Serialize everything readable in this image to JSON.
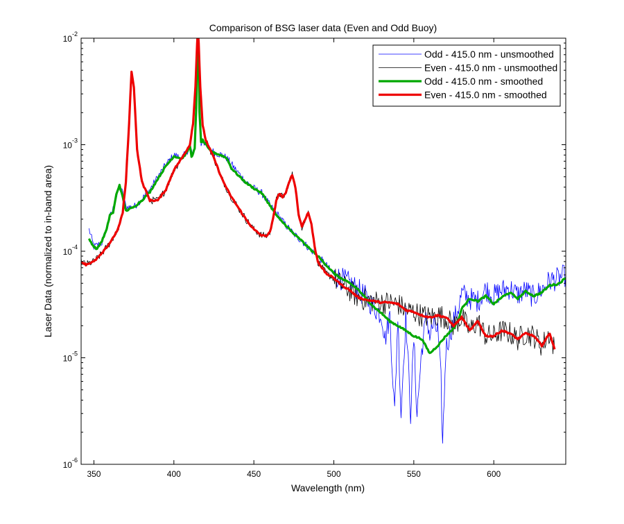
{
  "chart_data": {
    "type": "line",
    "title": "Comparison of BSG laser data (Even and Odd Buoy)",
    "xlabel": "Wavelength (nm)",
    "ylabel": "Laser Data (normalized to in-band area)",
    "xlim": [
      342,
      645
    ],
    "ylim": [
      1e-06,
      0.01
    ],
    "yscale": "log",
    "grid": false,
    "legend_position": "top-right",
    "x_ticks": [
      350,
      400,
      450,
      500,
      550,
      600
    ],
    "x_tick_labels": [
      "350",
      "400",
      "450",
      "500",
      "550",
      "600"
    ],
    "y_ticks": [
      1e-06,
      1e-05,
      0.0001,
      0.001,
      0.01
    ],
    "y_tick_labels": [
      {
        "base": "10",
        "exp": "-6"
      },
      {
        "base": "10",
        "exp": "-5"
      },
      {
        "base": "10",
        "exp": "-4"
      },
      {
        "base": "10",
        "exp": "-3"
      },
      {
        "base": "10",
        "exp": "-2"
      }
    ],
    "series": [
      {
        "name": "Odd - 415.0 nm - unsmoothed",
        "color": "#0000ff",
        "line_width": 0.8,
        "noisy": true,
        "x": [
          347,
          350,
          355,
          360,
          362,
          365,
          366,
          368,
          370,
          375,
          380,
          385,
          390,
          395,
          400,
          405,
          408,
          410,
          412,
          413,
          414,
          414.5,
          415,
          415.5,
          416,
          417,
          418,
          420,
          425,
          430,
          433,
          440,
          445,
          450,
          455,
          458,
          460,
          465,
          470,
          475,
          480,
          485,
          490,
          495,
          500,
          505,
          510,
          515,
          520,
          525,
          530,
          532,
          535,
          538,
          540,
          542,
          545,
          548,
          550,
          552,
          555,
          558,
          560,
          562,
          565,
          567,
          568,
          570,
          573,
          575,
          578,
          580,
          585,
          590,
          595,
          600,
          605,
          610,
          615,
          620,
          625,
          630,
          635,
          640,
          645
        ],
        "y": [
          0.00016,
          0.00011,
          0.00012,
          0.00021,
          0.00025,
          0.00036,
          0.00041,
          0.00035,
          0.00026,
          0.00026,
          0.00031,
          0.00038,
          0.0005,
          0.00065,
          0.0008,
          0.00075,
          0.00085,
          0.00098,
          0.00078,
          0.0009,
          0.002,
          0.006,
          0.011,
          0.006,
          0.002,
          0.001,
          0.0011,
          0.001,
          0.00085,
          0.0008,
          0.00075,
          0.00055,
          0.00045,
          0.00039,
          0.00035,
          0.0003,
          0.00027,
          0.00022,
          0.000175,
          0.000145,
          0.000125,
          0.000105,
          9e-05,
          7.5e-05,
          6e-05,
          5.5e-05,
          5e-05,
          4.4e-05,
          3.7e-05,
          3e-05,
          2.5e-05,
          1.5e-05,
          2.5e-05,
          3e-06,
          2.5e-05,
          3e-06,
          2.5e-05,
          3e-06,
          1.5e-05,
          3e-06,
          1.2e-05,
          2.5e-05,
          1.6e-05,
          2e-05,
          1.8e-05,
          6e-06,
          1.5e-06,
          1.2e-05,
          1.8e-05,
          2.2e-05,
          3e-05,
          4e-05,
          3.6e-05,
          3.4e-05,
          4.4e-05,
          3.8e-05,
          4.3e-05,
          4.5e-05,
          3.9e-05,
          4.3e-05,
          3.7e-05,
          4.4e-05,
          5.3e-05,
          5.5e-05,
          6e-05
        ]
      },
      {
        "name": "Even - 415.0 nm - unsmoothed",
        "color": "#000000",
        "line_width": 0.8,
        "noisy": true,
        "x": [
          342,
          345,
          350,
          355,
          360,
          365,
          368,
          370,
          372,
          373.5,
          375,
          377,
          380,
          385,
          390,
          395,
          400,
          405,
          410,
          412,
          413.5,
          414.5,
          415,
          415.5,
          416.5,
          418,
          420,
          425,
          430,
          435,
          440,
          445,
          450,
          455,
          458,
          460,
          462,
          464,
          466,
          468,
          470,
          472,
          474,
          476,
          478,
          480,
          482,
          484,
          486,
          488,
          490,
          495,
          500,
          505,
          510,
          515,
          520,
          525,
          530,
          535,
          540,
          545,
          550,
          555,
          560,
          565,
          570,
          575,
          580,
          585,
          590,
          595,
          600,
          605,
          610,
          615,
          620,
          625,
          630,
          635,
          638
        ],
        "y": [
          8e-05,
          7.5e-05,
          8e-05,
          9.5e-05,
          0.00012,
          0.00016,
          0.00023,
          0.00045,
          0.0016,
          0.0048,
          0.0035,
          0.0009,
          0.00045,
          0.0003,
          0.0003,
          0.00038,
          0.00058,
          0.00075,
          0.001,
          0.0016,
          0.0035,
          0.009,
          0.012,
          0.009,
          0.0035,
          0.0015,
          0.0011,
          0.00075,
          0.00048,
          0.00034,
          0.00026,
          0.0002,
          0.00016,
          0.00014,
          0.00014,
          0.00015,
          0.0002,
          0.0003,
          0.00035,
          0.00032,
          0.00035,
          0.00045,
          0.00052,
          0.0004,
          0.00022,
          0.00017,
          0.0002,
          0.00023,
          0.00018,
          0.00011,
          8e-05,
          6.2e-05,
          5.6e-05,
          4.8e-05,
          4.3e-05,
          3.7e-05,
          3.5e-05,
          3.4e-05,
          3.3e-05,
          3.3e-05,
          3.2e-05,
          2.8e-05,
          2.7e-05,
          2.5e-05,
          2.4e-05,
          2.5e-05,
          2.4e-05,
          2e-05,
          2.4e-05,
          1.8e-05,
          2.2e-05,
          1.6e-05,
          1.6e-05,
          1.8e-05,
          1.7e-05,
          1.5e-05,
          1.7e-05,
          1.6e-05,
          1.3e-05,
          1.7e-05,
          1.2e-05
        ]
      },
      {
        "name": "Odd - 415.0 nm - smoothed",
        "color": "#00a800",
        "line_width": 3.2,
        "noisy": false,
        "x": [
          347,
          350,
          352,
          355,
          358,
          360,
          362,
          364,
          366,
          368,
          370,
          375,
          380,
          385,
          390,
          395,
          400,
          405,
          408,
          410,
          411,
          412,
          413,
          414,
          414.5,
          415,
          415.5,
          416,
          417,
          418,
          420,
          422,
          425,
          430,
          433,
          436,
          440,
          445,
          450,
          455,
          458,
          460,
          463,
          466,
          470,
          475,
          480,
          485,
          490,
          495,
          500,
          505,
          510,
          515,
          520,
          525,
          530,
          535,
          540,
          545,
          550,
          555,
          560,
          565,
          570,
          575,
          578,
          580,
          585,
          590,
          595,
          600,
          605,
          610,
          615,
          620,
          625,
          630,
          635,
          640,
          645
        ],
        "y": [
          0.00013,
          0.00011,
          0.000105,
          0.000125,
          0.00016,
          0.00022,
          0.00023,
          0.00034,
          0.00042,
          0.00032,
          0.00024,
          0.00026,
          0.0003,
          0.00036,
          0.00048,
          0.00063,
          0.00078,
          0.00074,
          0.00084,
          0.00098,
          0.00078,
          0.00082,
          0.00092,
          0.0022,
          0.0065,
          0.011,
          0.0065,
          0.002,
          0.00105,
          0.0011,
          0.001,
          0.0009,
          0.00084,
          0.00079,
          0.00075,
          0.0006,
          0.00052,
          0.00044,
          0.00039,
          0.00035,
          0.0003,
          0.00027,
          0.00023,
          0.0002,
          0.000175,
          0.000145,
          0.000125,
          0.000105,
          9e-05,
          7.5e-05,
          6.2e-05,
          5.5e-05,
          5e-05,
          4.4e-05,
          3.6e-05,
          3e-05,
          2.6e-05,
          2.2e-05,
          2e-05,
          1.8e-05,
          1.6e-05,
          1.5e-05,
          1.1e-05,
          1.3e-05,
          1.6e-05,
          1.9e-05,
          2.3e-05,
          2.9e-05,
          3.6e-05,
          3.4e-05,
          3.8e-05,
          3.2e-05,
          3.7e-05,
          4.1e-05,
          3.6e-05,
          4.2e-05,
          3.8e-05,
          4.1e-05,
          4.8e-05,
          4.9e-05,
          5.6e-05
        ]
      },
      {
        "name": "Even - 415.0 nm - smoothed",
        "color": "#ee0000",
        "line_width": 3.2,
        "noisy": false,
        "x": [
          342,
          345,
          350,
          355,
          360,
          365,
          368,
          370,
          372,
          373.5,
          375,
          377,
          380,
          385,
          390,
          395,
          400,
          405,
          410,
          412,
          413.5,
          414.5,
          415,
          415.5,
          416.5,
          418,
          420,
          425,
          430,
          435,
          440,
          445,
          450,
          455,
          458,
          460,
          462,
          464,
          466,
          468,
          470,
          472,
          474,
          476,
          478,
          480,
          482,
          484,
          486,
          488,
          490,
          495,
          500,
          505,
          510,
          515,
          520,
          525,
          530,
          535,
          540,
          545,
          550,
          555,
          560,
          565,
          570,
          575,
          580,
          585,
          590,
          595,
          600,
          605,
          610,
          615,
          620,
          625,
          630,
          635,
          638
        ],
        "y": [
          8e-05,
          7.5e-05,
          8e-05,
          9.5e-05,
          0.00012,
          0.00016,
          0.00023,
          0.00045,
          0.0016,
          0.0048,
          0.0035,
          0.0009,
          0.00045,
          0.0003,
          0.0003,
          0.00038,
          0.00058,
          0.00075,
          0.001,
          0.0016,
          0.0035,
          0.009,
          0.012,
          0.009,
          0.0035,
          0.0015,
          0.0011,
          0.00075,
          0.00048,
          0.00034,
          0.00026,
          0.0002,
          0.00016,
          0.00014,
          0.00014,
          0.00015,
          0.0002,
          0.0003,
          0.00035,
          0.00032,
          0.00035,
          0.00045,
          0.00052,
          0.0004,
          0.00022,
          0.00017,
          0.0002,
          0.00023,
          0.00018,
          0.00011,
          8e-05,
          6.2e-05,
          5.6e-05,
          4.8e-05,
          4.3e-05,
          3.7e-05,
          3.5e-05,
          3.4e-05,
          3.3e-05,
          3.3e-05,
          3.2e-05,
          2.8e-05,
          2.7e-05,
          2.5e-05,
          2.4e-05,
          2.5e-05,
          2.4e-05,
          2e-05,
          2.4e-05,
          1.8e-05,
          2.2e-05,
          1.6e-05,
          1.6e-05,
          1.8e-05,
          1.7e-05,
          1.5e-05,
          1.7e-05,
          1.6e-05,
          1.3e-05,
          1.7e-05,
          1.2e-05
        ]
      }
    ]
  }
}
